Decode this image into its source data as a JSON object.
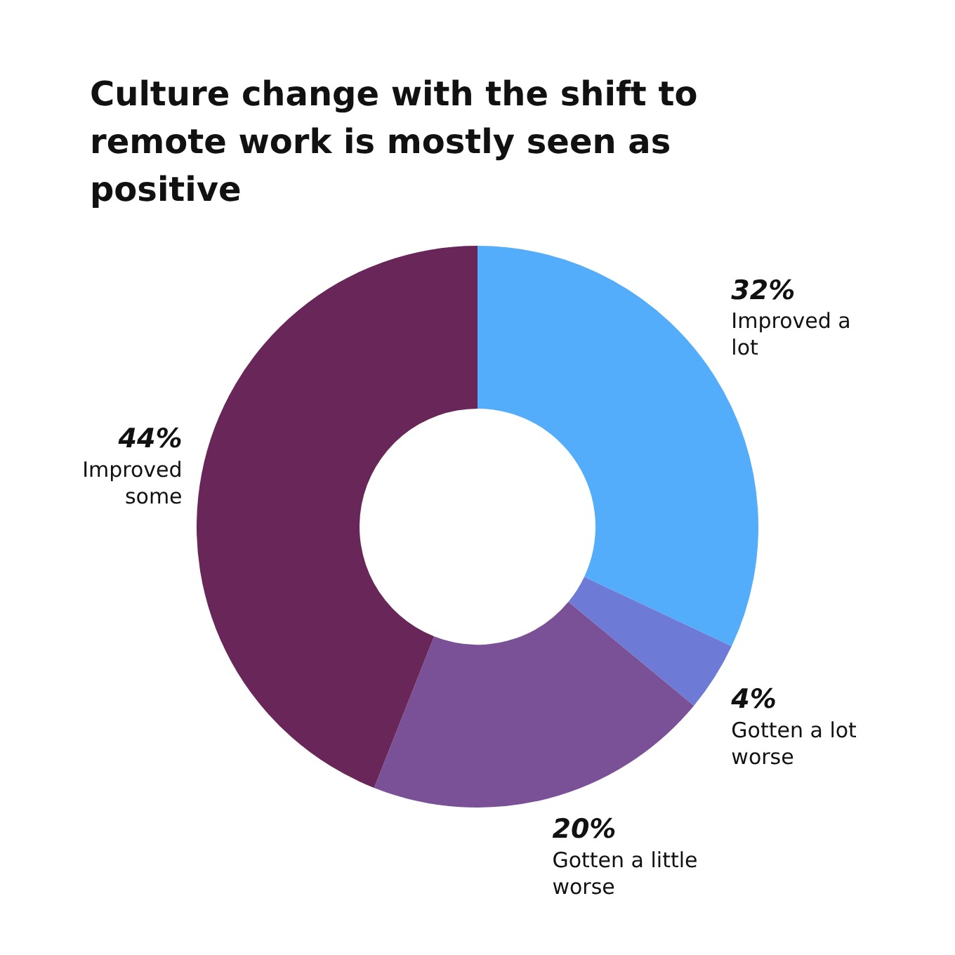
{
  "chart_data": {
    "type": "donut",
    "title": "Culture change with the shift to remote work is mostly seen as positive",
    "categories": [
      "Improved a lot",
      "Gotten a lot worse",
      "Gotten a little worse",
      "Improved some"
    ],
    "values": [
      32,
      4,
      20,
      44
    ],
    "colors": [
      "#53adfb",
      "#6e7bd6",
      "#7a5096",
      "#682758"
    ],
    "value_labels": [
      "32%",
      "4%",
      "20%",
      "44%"
    ],
    "legend": false
  }
}
